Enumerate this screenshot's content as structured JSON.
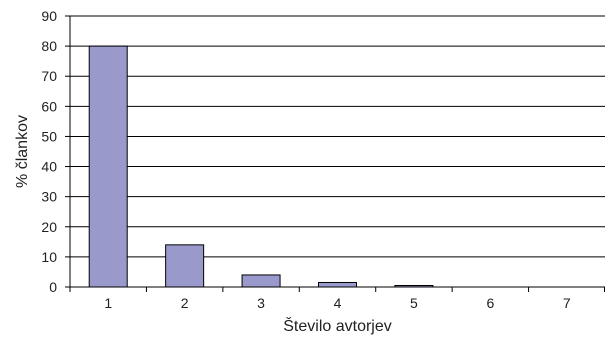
{
  "chart_data": {
    "type": "bar",
    "categories": [
      "1",
      "2",
      "3",
      "4",
      "5",
      "6",
      "7"
    ],
    "values": [
      80,
      14,
      4,
      1.5,
      0.5,
      0,
      0
    ],
    "ylim": [
      0,
      90
    ],
    "yticks": [
      0,
      10,
      20,
      30,
      40,
      50,
      60,
      70,
      80,
      90
    ],
    "xlabel": "Število avtorjev",
    "ylabel": "% člankov",
    "grid": "horizontal",
    "legend": "none",
    "colors": {
      "bar": "#9999cc",
      "axis": "#000000"
    }
  }
}
